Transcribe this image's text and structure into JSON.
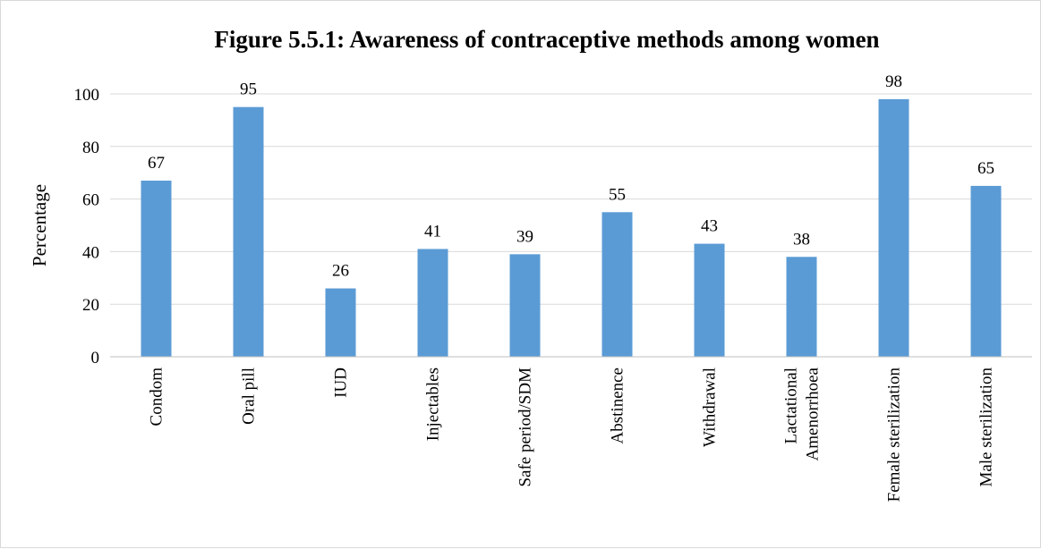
{
  "chart_data": {
    "type": "bar",
    "title": "Figure 5.5.1: Awareness of contraceptive methods among women",
    "ylabel": "Percentage",
    "xlabel": "",
    "ylim": [
      0,
      100
    ],
    "yticks": [
      0,
      20,
      40,
      60,
      80,
      100
    ],
    "grid": true,
    "legend": "none",
    "bar_color": "#5b9bd5",
    "categories": [
      [
        "Condom"
      ],
      [
        "Oral pill"
      ],
      [
        "IUD"
      ],
      [
        "Injectables"
      ],
      [
        "Safe period/SDM"
      ],
      [
        "Abstinence"
      ],
      [
        "Withdrawal"
      ],
      [
        "Lactational",
        "Amenorrhoea"
      ],
      [
        "Female sterilization"
      ],
      [
        "Male sterilization"
      ]
    ],
    "values": [
      67,
      95,
      26,
      41,
      39,
      55,
      43,
      38,
      98,
      65
    ],
    "data_labels": [
      "67",
      "95",
      "26",
      "41",
      "39",
      "55",
      "43",
      "38",
      "98",
      "65"
    ]
  }
}
